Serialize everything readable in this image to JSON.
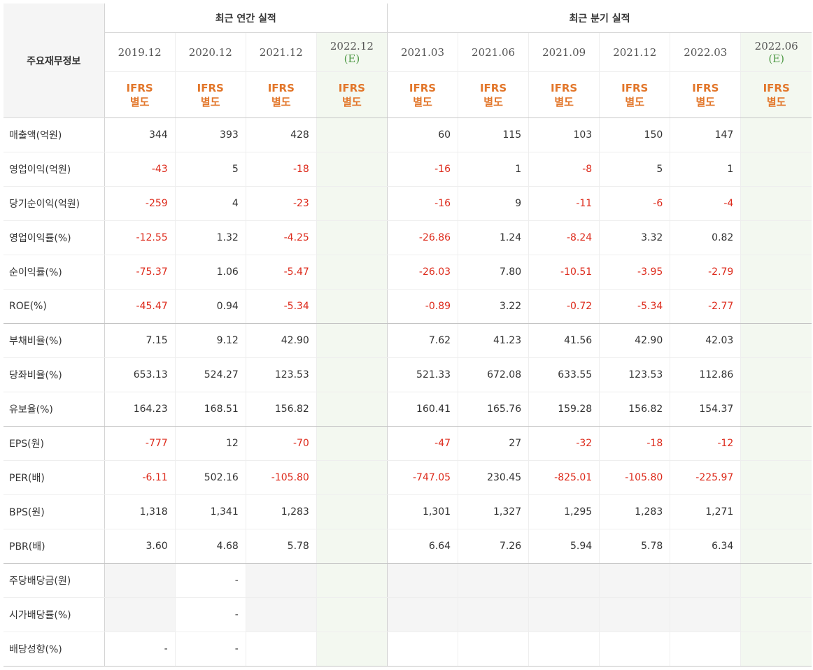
{
  "header": {
    "row_label": "주요재무정보",
    "annual_title": "최근 연간 실적",
    "quarter_title": "최근 분기 실적",
    "annual_periods": [
      {
        "date": "2019.12",
        "est": ""
      },
      {
        "date": "2020.12",
        "est": ""
      },
      {
        "date": "2021.12",
        "est": ""
      },
      {
        "date": "2022.12",
        "est": "(E)"
      }
    ],
    "quarter_periods": [
      {
        "date": "2021.03",
        "est": ""
      },
      {
        "date": "2021.06",
        "est": ""
      },
      {
        "date": "2021.09",
        "est": ""
      },
      {
        "date": "2021.12",
        "est": ""
      },
      {
        "date": "2022.03",
        "est": ""
      },
      {
        "date": "2022.06",
        "est": "(E)"
      }
    ],
    "std_line1": "IFRS",
    "std_line2": "별도"
  },
  "rows": [
    {
      "label": "매출액(억원)",
      "values": [
        "344",
        "393",
        "428",
        "",
        "60",
        "115",
        "103",
        "150",
        "147",
        ""
      ]
    },
    {
      "label": "영업이익(억원)",
      "values": [
        "-43",
        "5",
        "-18",
        "",
        "-16",
        "1",
        "-8",
        "5",
        "1",
        ""
      ]
    },
    {
      "label": "당기순이익(억원)",
      "values": [
        "-259",
        "4",
        "-23",
        "",
        "-16",
        "9",
        "-11",
        "-6",
        "-4",
        ""
      ]
    },
    {
      "label": "영업이익률(%)",
      "values": [
        "-12.55",
        "1.32",
        "-4.25",
        "",
        "-26.86",
        "1.24",
        "-8.24",
        "3.32",
        "0.82",
        ""
      ]
    },
    {
      "label": "순이익률(%)",
      "values": [
        "-75.37",
        "1.06",
        "-5.47",
        "",
        "-26.03",
        "7.80",
        "-10.51",
        "-3.95",
        "-2.79",
        ""
      ]
    },
    {
      "label": "ROE(%)",
      "values": [
        "-45.47",
        "0.94",
        "-5.34",
        "",
        "-0.89",
        "3.22",
        "-0.72",
        "-5.34",
        "-2.77",
        ""
      ]
    },
    {
      "label": "부채비율(%)",
      "values": [
        "7.15",
        "9.12",
        "42.90",
        "",
        "7.62",
        "41.23",
        "41.56",
        "42.90",
        "42.03",
        ""
      ]
    },
    {
      "label": "당좌비율(%)",
      "values": [
        "653.13",
        "524.27",
        "123.53",
        "",
        "521.33",
        "672.08",
        "633.55",
        "123.53",
        "112.86",
        ""
      ]
    },
    {
      "label": "유보율(%)",
      "values": [
        "164.23",
        "168.51",
        "156.82",
        "",
        "160.41",
        "165.76",
        "159.28",
        "156.82",
        "154.37",
        ""
      ]
    },
    {
      "label": "EPS(원)",
      "values": [
        "-777",
        "12",
        "-70",
        "",
        "-47",
        "27",
        "-32",
        "-18",
        "-12",
        ""
      ]
    },
    {
      "label": "PER(배)",
      "values": [
        "-6.11",
        "502.16",
        "-105.80",
        "",
        "-747.05",
        "230.45",
        "-825.01",
        "-105.80",
        "-225.97",
        ""
      ]
    },
    {
      "label": "BPS(원)",
      "values": [
        "1,318",
        "1,341",
        "1,283",
        "",
        "1,301",
        "1,327",
        "1,295",
        "1,283",
        "1,271",
        ""
      ]
    },
    {
      "label": "PBR(배)",
      "values": [
        "3.60",
        "4.68",
        "5.78",
        "",
        "6.64",
        "7.26",
        "5.94",
        "5.78",
        "6.34",
        ""
      ]
    },
    {
      "label": "주당배당금(원)",
      "values": [
        "",
        "-",
        "",
        "",
        "",
        "",
        "",
        "",
        "",
        ""
      ]
    },
    {
      "label": "시가배당률(%)",
      "values": [
        "",
        "-",
        "",
        "",
        "",
        "",
        "",
        "",
        "",
        ""
      ]
    },
    {
      "label": "배당성향(%)",
      "values": [
        "-",
        "-",
        "",
        "",
        "",
        "",
        "",
        "",
        "",
        ""
      ]
    }
  ],
  "colors": {
    "negative": "#dd2a1b",
    "standard_label": "#e2762a",
    "estimate_mark": "#4f9a46",
    "estimate_bg": "#f3f8f0",
    "empty_bg": "#f5f5f5"
  }
}
